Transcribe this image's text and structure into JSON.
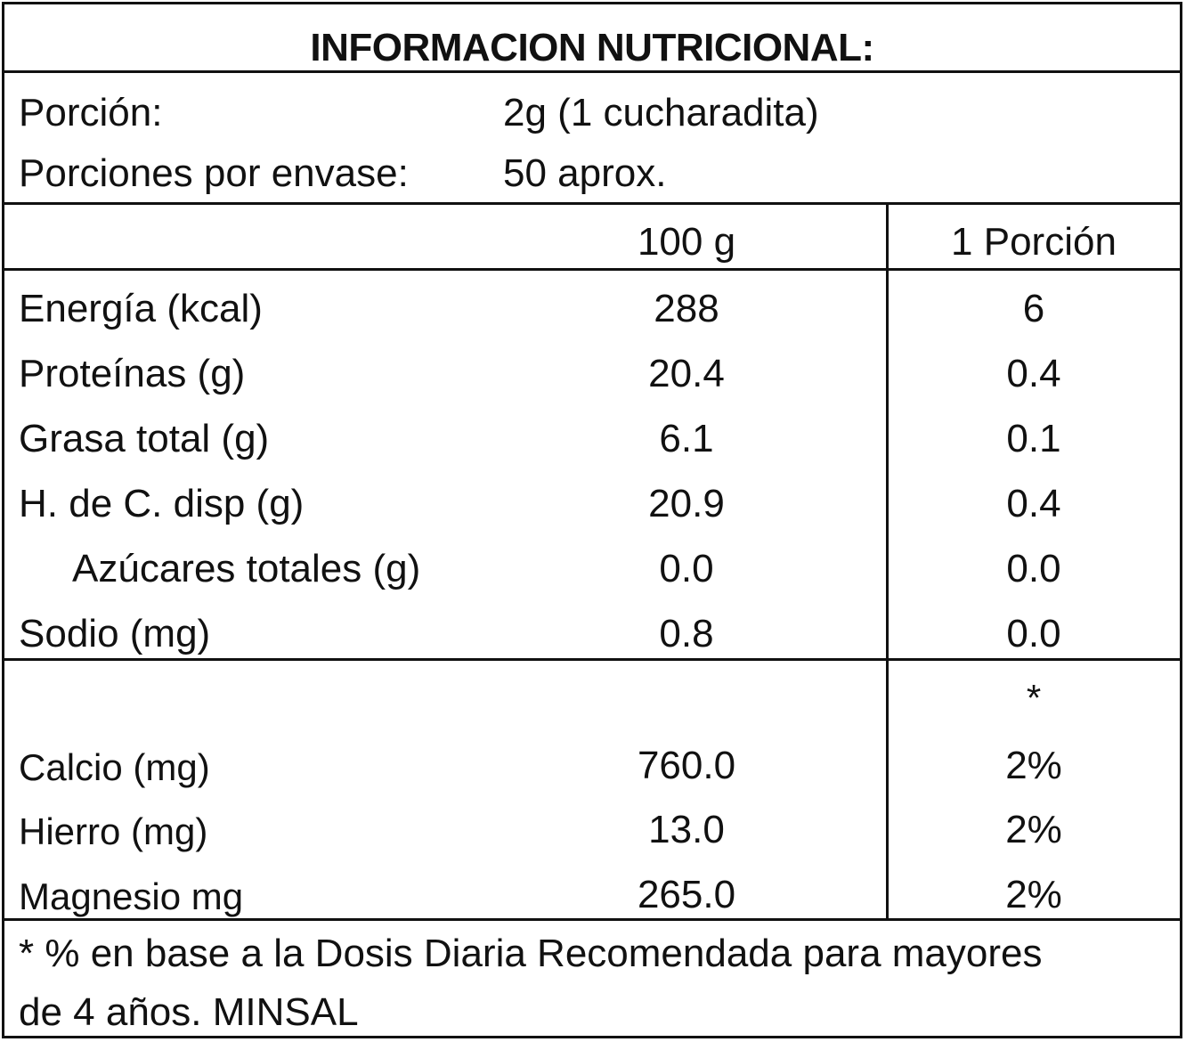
{
  "title": "INFORMACION NUTRICIONAL:",
  "serving": {
    "portion_label": "Porción:",
    "portion_value": "2g (1 cucharadita)",
    "per_pack_label": "Porciones por envase:",
    "per_pack_value": "50 aprox."
  },
  "columns": {
    "per_100g": "100 g",
    "per_portion": "1 Porción"
  },
  "nutrients": [
    {
      "name": "Energía (kcal)",
      "per_100g": "288",
      "per_portion": "6"
    },
    {
      "name": "Proteínas (g)",
      "per_100g": "20.4",
      "per_portion": "0.4"
    },
    {
      "name": "Grasa total (g)",
      "per_100g": "6.1",
      "per_portion": "0.1"
    },
    {
      "name": "H. de C. disp (g)",
      "per_100g": "20.9",
      "per_portion": "0.4"
    },
    {
      "name": "Azúcares totales (g)",
      "per_100g": "0.0",
      "per_portion": "0.0"
    },
    {
      "name": "Sodio (mg)",
      "per_100g": "0.8",
      "per_portion": "0.0"
    }
  ],
  "minerals_marker": "*",
  "minerals": [
    {
      "name": "Calcio (mg)",
      "per_100g": "760.0",
      "per_portion": "2%"
    },
    {
      "name": "Hierro (mg)",
      "per_100g": "13.0",
      "per_portion": "2%"
    },
    {
      "name": "Magnesio mg",
      "per_100g": "265.0",
      "per_portion": "2%"
    }
  ],
  "footnote": {
    "line1": "* % en base a la Dosis Diaria Recomendada para mayores",
    "line2": "de 4 años. MINSAL"
  },
  "colors": {
    "ink": "#111111",
    "background": "#ffffff"
  }
}
